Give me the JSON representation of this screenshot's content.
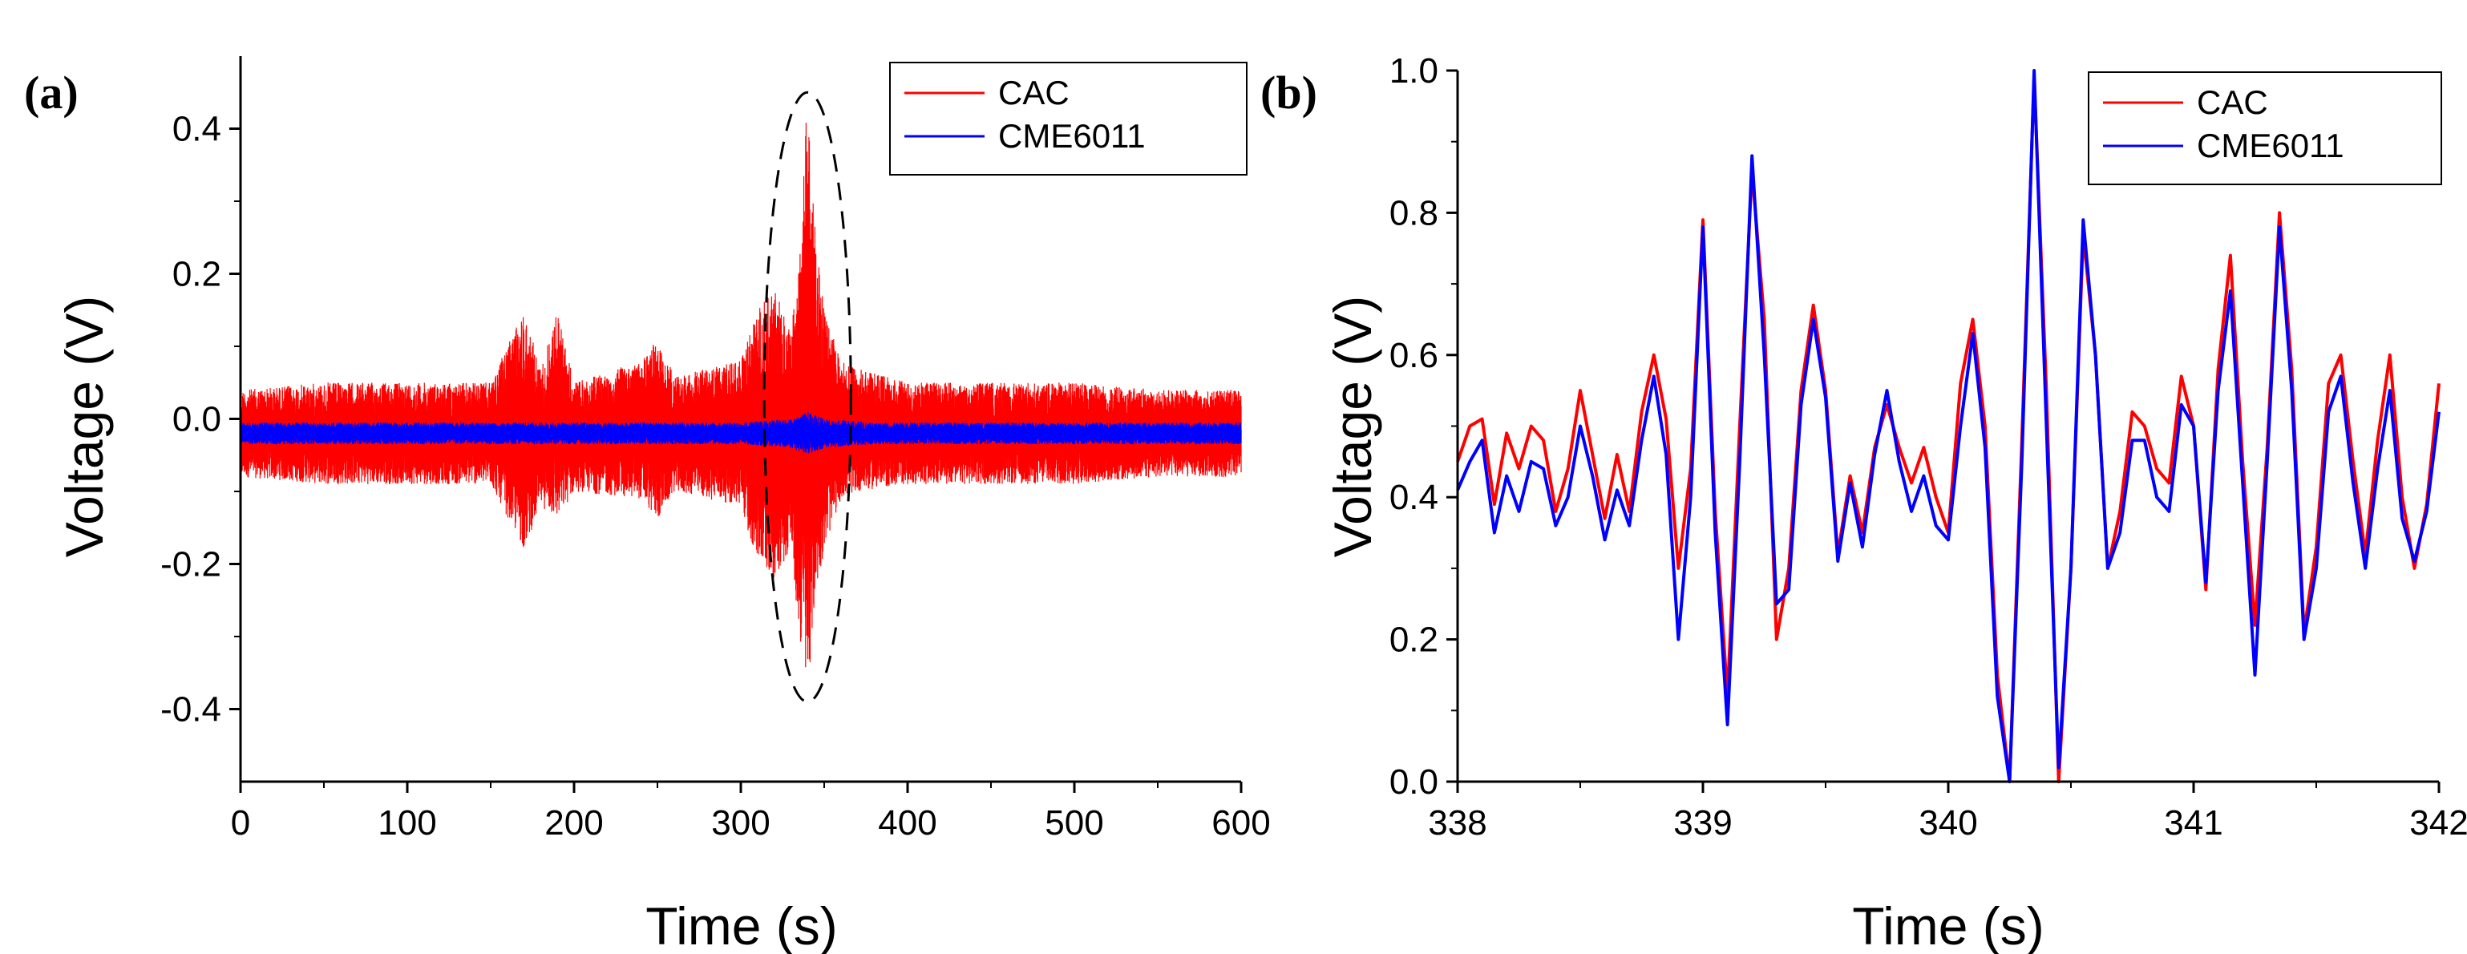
{
  "chart_data": [
    {
      "panel": "(a)",
      "type": "line",
      "title": "",
      "xlabel": "Time  (s)",
      "ylabel": "Voltage  (V)",
      "xlim": [
        0,
        600
      ],
      "ylim": [
        -0.5,
        0.5
      ],
      "xticks": [
        0,
        100,
        200,
        300,
        400,
        500,
        600
      ],
      "xtick_labels": [
        "0",
        "100",
        "200",
        "300",
        "400",
        "500",
        "600"
      ],
      "yticks": [
        -0.4,
        -0.2,
        0.0,
        0.2,
        0.4
      ],
      "ytick_labels": [
        "-0.4",
        "-0.2",
        "0.0",
        "0.2",
        "0.4"
      ],
      "grid": false,
      "legend": "top-right",
      "series": [
        {
          "name": "CAC",
          "color": "#ff0000",
          "envelope_x": [
            0,
            50,
            100,
            150,
            170,
            180,
            190,
            200,
            240,
            250,
            260,
            300,
            310,
            320,
            330,
            335,
            340,
            345,
            350,
            360,
            370,
            400,
            450,
            500,
            550,
            600
          ],
          "envelope_upper": [
            0.04,
            0.05,
            0.05,
            0.05,
            0.15,
            0.07,
            0.15,
            0.05,
            0.08,
            0.11,
            0.06,
            0.08,
            0.15,
            0.18,
            0.12,
            0.22,
            0.45,
            0.25,
            0.15,
            0.08,
            0.07,
            0.05,
            0.05,
            0.05,
            0.04,
            0.04
          ],
          "envelope_lower": [
            -0.08,
            -0.09,
            -0.09,
            -0.09,
            -0.18,
            -0.12,
            -0.14,
            -0.1,
            -0.11,
            -0.14,
            -0.1,
            -0.12,
            -0.2,
            -0.22,
            -0.18,
            -0.3,
            -0.38,
            -0.24,
            -0.18,
            -0.11,
            -0.1,
            -0.09,
            -0.09,
            -0.09,
            -0.08,
            -0.08
          ]
        },
        {
          "name": "CME6011",
          "color": "#0000ff",
          "envelope_x": [
            0,
            300,
            330,
            340,
            350,
            380,
            600
          ],
          "envelope_upper": [
            -0.005,
            -0.005,
            0.0,
            0.01,
            0.0,
            -0.005,
            -0.005
          ],
          "envelope_lower": [
            -0.035,
            -0.035,
            -0.04,
            -0.05,
            -0.04,
            -0.035,
            -0.035
          ]
        }
      ],
      "annotation": "dashed ellipse around t ≈ 315–365 s"
    },
    {
      "panel": "(b)",
      "type": "line",
      "title": "",
      "xlabel": "Time  (s)",
      "ylabel": "Voltage  (V)",
      "xlim": [
        338,
        342
      ],
      "ylim": [
        0.0,
        1.0
      ],
      "xticks": [
        338,
        339,
        340,
        341,
        342
      ],
      "xtick_labels": [
        "338",
        "339",
        "340",
        "341",
        "342"
      ],
      "yticks": [
        0.0,
        0.2,
        0.4,
        0.6,
        0.8,
        1.0
      ],
      "ytick_labels": [
        "0.0",
        "0.2",
        "0.4",
        "0.6",
        "0.8",
        "1.0"
      ],
      "grid": false,
      "legend": "top-right",
      "series": [
        {
          "name": "CAC",
          "color": "#ff0000",
          "x": [
            338.0,
            338.05,
            338.1,
            338.15,
            338.2,
            338.25,
            338.3,
            338.35,
            338.4,
            338.45,
            338.5,
            338.55,
            338.6,
            338.65,
            338.7,
            338.75,
            338.8,
            338.85,
            338.9,
            338.95,
            339.0,
            339.05,
            339.1,
            339.15,
            339.2,
            339.25,
            339.3,
            339.35,
            339.4,
            339.45,
            339.5,
            339.55,
            339.6,
            339.65,
            339.7,
            339.75,
            339.8,
            339.85,
            339.9,
            339.95,
            340.0,
            340.05,
            340.1,
            340.15,
            340.2,
            340.25,
            340.3,
            340.35,
            340.4,
            340.45,
            340.5,
            340.55,
            340.6,
            340.65,
            340.7,
            340.75,
            340.8,
            340.85,
            340.9,
            340.95,
            341.0,
            341.05,
            341.1,
            341.15,
            341.2,
            341.25,
            341.3,
            341.35,
            341.4,
            341.45,
            341.5,
            341.55,
            341.6,
            341.65,
            341.7,
            341.75,
            341.8,
            341.85,
            341.9,
            341.95,
            342.0
          ],
          "y": [
            0.45,
            0.5,
            0.51,
            0.39,
            0.49,
            0.44,
            0.5,
            0.48,
            0.38,
            0.44,
            0.55,
            0.46,
            0.37,
            0.46,
            0.38,
            0.52,
            0.6,
            0.51,
            0.3,
            0.44,
            0.79,
            0.38,
            0.12,
            0.5,
            0.86,
            0.65,
            0.2,
            0.3,
            0.55,
            0.67,
            0.55,
            0.32,
            0.43,
            0.35,
            0.47,
            0.53,
            0.47,
            0.42,
            0.47,
            0.4,
            0.35,
            0.56,
            0.65,
            0.5,
            0.15,
            0.0,
            0.48,
            0.99,
            0.55,
            0.0,
            0.3,
            0.77,
            0.6,
            0.3,
            0.38,
            0.52,
            0.5,
            0.44,
            0.42,
            0.57,
            0.5,
            0.27,
            0.58,
            0.74,
            0.45,
            0.22,
            0.47,
            0.8,
            0.58,
            0.21,
            0.33,
            0.56,
            0.6,
            0.45,
            0.32,
            0.48,
            0.6,
            0.4,
            0.3,
            0.39,
            0.56
          ]
        },
        {
          "name": "CME6011",
          "color": "#0000ff",
          "x": [
            338.0,
            338.05,
            338.1,
            338.15,
            338.2,
            338.25,
            338.3,
            338.35,
            338.4,
            338.45,
            338.5,
            338.55,
            338.6,
            338.65,
            338.7,
            338.75,
            338.8,
            338.85,
            338.9,
            338.95,
            339.0,
            339.05,
            339.1,
            339.15,
            339.2,
            339.25,
            339.3,
            339.35,
            339.4,
            339.45,
            339.5,
            339.55,
            339.6,
            339.65,
            339.7,
            339.75,
            339.8,
            339.85,
            339.9,
            339.95,
            340.0,
            340.05,
            340.1,
            340.15,
            340.2,
            340.25,
            340.3,
            340.35,
            340.4,
            340.45,
            340.5,
            340.55,
            340.6,
            340.65,
            340.7,
            340.75,
            340.8,
            340.85,
            340.9,
            340.95,
            341.0,
            341.05,
            341.1,
            341.15,
            341.2,
            341.25,
            341.3,
            341.35,
            341.4,
            341.45,
            341.5,
            341.55,
            341.6,
            341.65,
            341.7,
            341.75,
            341.8,
            341.85,
            341.9,
            341.95,
            342.0
          ],
          "y": [
            0.41,
            0.45,
            0.48,
            0.35,
            0.43,
            0.38,
            0.45,
            0.44,
            0.36,
            0.4,
            0.5,
            0.43,
            0.34,
            0.41,
            0.36,
            0.48,
            0.57,
            0.46,
            0.2,
            0.4,
            0.78,
            0.35,
            0.08,
            0.45,
            0.88,
            0.6,
            0.25,
            0.27,
            0.53,
            0.65,
            0.54,
            0.31,
            0.42,
            0.33,
            0.46,
            0.55,
            0.45,
            0.38,
            0.43,
            0.36,
            0.34,
            0.5,
            0.63,
            0.47,
            0.12,
            0.0,
            0.45,
            1.0,
            0.5,
            0.02,
            0.3,
            0.79,
            0.6,
            0.3,
            0.35,
            0.48,
            0.48,
            0.4,
            0.38,
            0.53,
            0.5,
            0.28,
            0.55,
            0.69,
            0.42,
            0.15,
            0.45,
            0.78,
            0.55,
            0.2,
            0.3,
            0.52,
            0.57,
            0.42,
            0.3,
            0.44,
            0.55,
            0.37,
            0.31,
            0.38,
            0.52
          ]
        }
      ]
    }
  ]
}
